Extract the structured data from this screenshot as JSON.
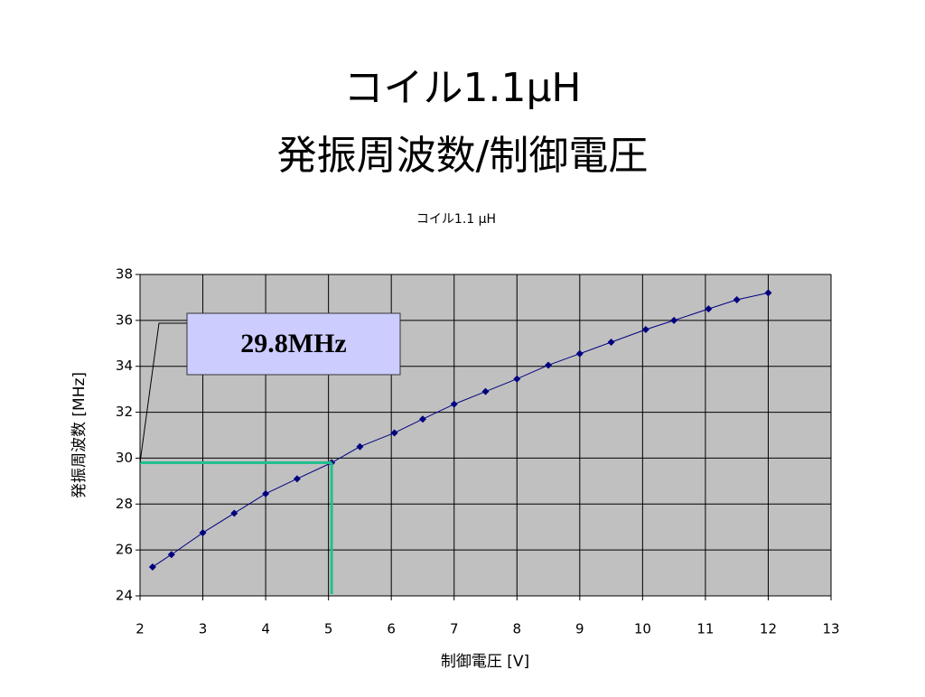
{
  "slide_title": [
    "コイル1.1μH",
    "発振周波数/制御電圧"
  ],
  "chart_data": {
    "type": "line",
    "title": "コイル1.1 μH",
    "x_label": "制御電圧 [V]",
    "y_label": "発振周波数 [MHz]",
    "x": [
      2.2,
      2.5,
      3,
      3.5,
      4,
      4.5,
      5.05,
      5.5,
      6.05,
      6.5,
      7,
      7.5,
      8,
      8.5,
      9,
      9.5,
      10.05,
      10.5,
      11.05,
      11.5,
      12
    ],
    "series": [
      {
        "color": "#000080",
        "values": [
          25.26,
          25.8,
          26.75,
          27.6,
          28.45,
          29.1,
          29.8,
          30.5,
          31.1,
          31.7,
          32.35,
          32.9,
          33.45,
          34.05,
          34.55,
          35.05,
          35.6,
          36.0,
          36.5,
          36.9,
          37.2
        ]
      }
    ],
    "xlim": [
      2,
      13
    ],
    "xticks": [
      2,
      3,
      4,
      5,
      6,
      7,
      8,
      9,
      10,
      11,
      12,
      13
    ],
    "ylim": [
      24,
      38
    ],
    "yticks": [
      24,
      26,
      28,
      30,
      32,
      34,
      36,
      38
    ],
    "grid": true,
    "plot_background": "#c0c0c0",
    "annotation": {
      "text": "29.8MHz",
      "x": 5.05,
      "y": 29.8,
      "color": "#20c090"
    }
  }
}
